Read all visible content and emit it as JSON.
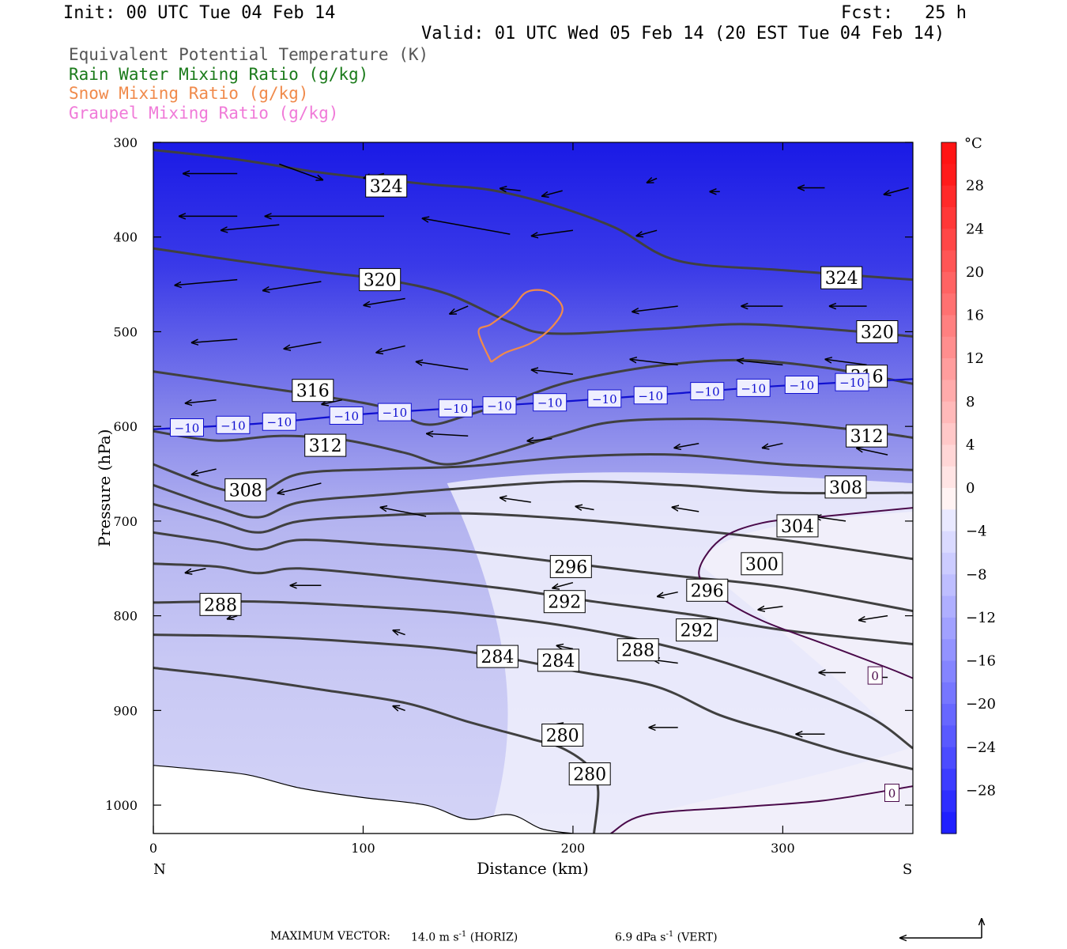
{
  "header": {
    "init": "Init: 00 UTC Tue 04 Feb 14",
    "fcst": "Fcst:   25 h",
    "valid": "Valid: 01 UTC Wed 05 Feb 14 (20 EST Tue 04 Feb 14)"
  },
  "legend": [
    {
      "label": "Equivalent Potential Temperature (K)",
      "color": "#555555"
    },
    {
      "label": "Rain Water Mixing Ratio (g/kg)",
      "color": "#1a7a1a"
    },
    {
      "label": "Snow Mixing Ratio (g/kg)",
      "color": "#f08a4b"
    },
    {
      "label": "Graupel Mixing Ratio (g/kg)",
      "color": "#f07ad8"
    }
  ],
  "footer": {
    "label": "MAXIMUM VECTOR:",
    "horiz_value": "14.0 m s",
    "horiz_exp": "-1",
    "horiz_unit": "(HORIZ)",
    "vert_value": "6.9 dPa s",
    "vert_exp": "-1",
    "vert_unit": "(VERT)"
  },
  "chart_data": {
    "type": "cross-section",
    "xlabel": "Distance (km)",
    "ylabel": "Pressure (hPa)",
    "xlim": [
      0,
      362
    ],
    "ylim": [
      1030,
      300
    ],
    "xticks": [
      0,
      100,
      200,
      300
    ],
    "yticks": [
      300,
      400,
      500,
      600,
      700,
      800,
      900,
      1000
    ],
    "x_end_labels": {
      "left": "N",
      "right": "S"
    },
    "colorbar": {
      "unit": "°C",
      "ticks": [
        28,
        24,
        20,
        16,
        12,
        8,
        4,
        0,
        -4,
        -8,
        -12,
        -16,
        -20,
        -24,
        -28
      ],
      "range": [
        -32,
        32
      ]
    },
    "theta_e_contours": [
      {
        "value": 324,
        "points": [
          [
            0,
            308
          ],
          [
            40,
            318
          ],
          [
            80,
            332
          ],
          [
            130,
            344
          ],
          [
            160,
            350
          ],
          [
            190,
            366
          ],
          [
            220,
            390
          ],
          [
            250,
            425
          ],
          [
            300,
            435
          ],
          [
            362,
            445
          ]
        ]
      },
      {
        "value": 320,
        "points": [
          [
            0,
            412
          ],
          [
            40,
            425
          ],
          [
            80,
            437
          ],
          [
            110,
            445
          ],
          [
            140,
            460
          ],
          [
            170,
            490
          ],
          [
            190,
            502
          ],
          [
            240,
            497
          ],
          [
            280,
            492
          ],
          [
            320,
            497
          ],
          [
            362,
            505
          ]
        ]
      },
      {
        "value": 316,
        "points": [
          [
            0,
            542
          ],
          [
            40,
            555
          ],
          [
            80,
            568
          ],
          [
            110,
            580
          ],
          [
            130,
            598
          ],
          [
            150,
            588
          ],
          [
            175,
            570
          ],
          [
            200,
            552
          ],
          [
            240,
            536
          ],
          [
            280,
            530
          ],
          [
            320,
            538
          ],
          [
            362,
            555
          ]
        ]
      },
      {
        "value": 312,
        "points": [
          [
            0,
            605
          ],
          [
            30,
            615
          ],
          [
            60,
            610
          ],
          [
            90,
            614
          ],
          [
            120,
            628
          ],
          [
            140,
            640
          ],
          [
            165,
            628
          ],
          [
            195,
            608
          ],
          [
            220,
            595
          ],
          [
            260,
            592
          ],
          [
            300,
            596
          ],
          [
            340,
            605
          ],
          [
            362,
            612
          ]
        ]
      },
      {
        "value": 308,
        "points": [
          [
            0,
            640
          ],
          [
            30,
            665
          ],
          [
            50,
            670
          ],
          [
            70,
            650
          ],
          [
            110,
            645
          ],
          [
            150,
            642
          ],
          [
            200,
            632
          ],
          [
            250,
            630
          ],
          [
            300,
            640
          ],
          [
            362,
            646
          ]
        ]
      },
      {
        "value": 304,
        "points": [
          [
            0,
            662
          ],
          [
            30,
            685
          ],
          [
            50,
            696
          ],
          [
            70,
            680
          ],
          [
            110,
            672
          ],
          [
            150,
            665
          ],
          [
            200,
            658
          ],
          [
            250,
            662
          ],
          [
            300,
            670
          ],
          [
            362,
            670
          ]
        ]
      },
      {
        "value": 300,
        "points": [
          [
            0,
            682
          ],
          [
            30,
            700
          ],
          [
            50,
            712
          ],
          [
            70,
            700
          ],
          [
            110,
            694
          ],
          [
            150,
            692
          ],
          [
            200,
            698
          ],
          [
            250,
            708
          ],
          [
            300,
            720
          ],
          [
            362,
            740
          ]
        ]
      },
      {
        "value": 296,
        "points": [
          [
            0,
            712
          ],
          [
            30,
            722
          ],
          [
            50,
            730
          ],
          [
            70,
            720
          ],
          [
            110,
            725
          ],
          [
            150,
            732
          ],
          [
            200,
            745
          ],
          [
            250,
            758
          ],
          [
            300,
            770
          ],
          [
            362,
            795
          ]
        ]
      },
      {
        "value": 292,
        "points": [
          [
            0,
            745
          ],
          [
            30,
            748
          ],
          [
            50,
            755
          ],
          [
            70,
            750
          ],
          [
            120,
            760
          ],
          [
            170,
            772
          ],
          [
            210,
            785
          ],
          [
            260,
            800
          ],
          [
            300,
            815
          ],
          [
            362,
            830
          ]
        ]
      },
      {
        "value": 288,
        "points": [
          [
            0,
            786
          ],
          [
            50,
            785
          ],
          [
            100,
            790
          ],
          [
            150,
            798
          ],
          [
            200,
            812
          ],
          [
            250,
            835
          ],
          [
            300,
            870
          ],
          [
            340,
            905
          ],
          [
            362,
            940
          ]
        ]
      },
      {
        "value": 284,
        "points": [
          [
            0,
            820
          ],
          [
            50,
            822
          ],
          [
            100,
            828
          ],
          [
            150,
            838
          ],
          [
            200,
            858
          ],
          [
            240,
            875
          ],
          [
            270,
            905
          ],
          [
            300,
            925
          ],
          [
            330,
            945
          ],
          [
            362,
            962
          ]
        ]
      },
      {
        "value": 280,
        "points": [
          [
            0,
            855
          ],
          [
            40,
            865
          ],
          [
            80,
            878
          ],
          [
            120,
            892
          ],
          [
            150,
            912
          ],
          [
            180,
            930
          ],
          [
            195,
            940
          ],
          [
            208,
            960
          ],
          [
            212,
            985
          ],
          [
            210,
            1030
          ]
        ]
      }
    ],
    "contour_labels": [
      {
        "text": "324",
        "x": 111,
        "p": 346
      },
      {
        "text": "324",
        "x": 328,
        "p": 443
      },
      {
        "text": "320",
        "x": 108,
        "p": 445
      },
      {
        "text": "320",
        "x": 345,
        "p": 500
      },
      {
        "text": "316",
        "x": 76,
        "p": 562
      },
      {
        "text": "316",
        "x": 340,
        "p": 547
      },
      {
        "text": "312",
        "x": 82,
        "p": 620
      },
      {
        "text": "312",
        "x": 340,
        "p": 610
      },
      {
        "text": "308",
        "x": 44,
        "p": 667
      },
      {
        "text": "308",
        "x": 330,
        "p": 664
      },
      {
        "text": "304",
        "x": 307,
        "p": 705
      },
      {
        "text": "300",
        "x": 290,
        "p": 745
      },
      {
        "text": "296",
        "x": 199,
        "p": 748
      },
      {
        "text": "296",
        "x": 264,
        "p": 773
      },
      {
        "text": "292",
        "x": 196,
        "p": 785
      },
      {
        "text": "292",
        "x": 259,
        "p": 815
      },
      {
        "text": "288",
        "x": 32,
        "p": 788
      },
      {
        "text": "288",
        "x": 231,
        "p": 836
      },
      {
        "text": "284",
        "x": 164,
        "p": 843
      },
      {
        "text": "284",
        "x": 193,
        "p": 847
      },
      {
        "text": "280",
        "x": 195,
        "p": 926
      },
      {
        "text": "280",
        "x": 208,
        "p": 967
      }
    ],
    "isotherm_minus10": {
      "value": -10,
      "points": [
        [
          0,
          603
        ],
        [
          50,
          597
        ],
        [
          100,
          587
        ],
        [
          150,
          580
        ],
        [
          200,
          573
        ],
        [
          250,
          565
        ],
        [
          300,
          557
        ],
        [
          362,
          550
        ]
      ],
      "label_x": [
        16,
        38,
        60,
        92,
        115,
        144,
        165,
        189,
        215,
        237,
        264,
        286,
        309,
        333
      ]
    },
    "isotherm_0_labels": [
      {
        "text": "0",
        "x": 344,
        "p": 863
      },
      {
        "text": "0",
        "x": 352,
        "p": 987
      }
    ],
    "snow_contour": {
      "points": [
        [
          161,
          532
        ],
        [
          168,
          522
        ],
        [
          180,
          512
        ],
        [
          190,
          495
        ],
        [
          195,
          475
        ],
        [
          188,
          458
        ],
        [
          178,
          458
        ],
        [
          171,
          475
        ],
        [
          161,
          492
        ],
        [
          155,
          500
        ],
        [
          161,
          532
        ]
      ]
    },
    "wind_vectors": [
      [
        40,
        333,
        -26,
        0
      ],
      [
        60,
        323,
        21,
        14
      ],
      [
        110,
        333,
        -10,
        4
      ],
      [
        175,
        351,
        -10,
        -2
      ],
      [
        195,
        351,
        -10,
        5
      ],
      [
        240,
        338,
        -5,
        4
      ],
      [
        270,
        352,
        -5,
        0
      ],
      [
        320,
        348,
        -13,
        0
      ],
      [
        360,
        348,
        -12,
        6
      ],
      [
        40,
        378,
        -28,
        0
      ],
      [
        110,
        378,
        -57,
        0
      ],
      [
        170,
        397,
        -42,
        -14
      ],
      [
        200,
        393,
        -20,
        5
      ],
      [
        240,
        393,
        -10,
        5
      ],
      [
        60,
        387,
        -28,
        5
      ],
      [
        40,
        445,
        -30,
        5
      ],
      [
        80,
        447,
        -28,
        8
      ],
      [
        120,
        465,
        -20,
        6
      ],
      [
        150,
        473,
        -9,
        7
      ],
      [
        250,
        473,
        -22,
        5
      ],
      [
        300,
        473,
        -20,
        0
      ],
      [
        340,
        473,
        -18,
        0
      ],
      [
        40,
        508,
        -22,
        3
      ],
      [
        80,
        511,
        -18,
        6
      ],
      [
        120,
        515,
        -14,
        6
      ],
      [
        150,
        540,
        -25,
        -7
      ],
      [
        200,
        545,
        -20,
        -4
      ],
      [
        250,
        535,
        -23,
        -5
      ],
      [
        300,
        535,
        -22,
        -4
      ],
      [
        340,
        535,
        -20,
        -5
      ],
      [
        30,
        572,
        -15,
        3
      ],
      [
        90,
        572,
        -10,
        4
      ],
      [
        150,
        610,
        -20,
        -2
      ],
      [
        190,
        613,
        -12,
        2
      ],
      [
        260,
        618,
        -12,
        4
      ],
      [
        300,
        618,
        -10,
        4
      ],
      [
        350,
        630,
        -15,
        -6
      ],
      [
        30,
        645,
        -12,
        5
      ],
      [
        80,
        660,
        -21,
        9
      ],
      [
        130,
        695,
        -22,
        -8
      ],
      [
        180,
        680,
        -15,
        -4
      ],
      [
        210,
        688,
        -9,
        -3
      ],
      [
        260,
        690,
        -13,
        -4
      ],
      [
        330,
        700,
        -15,
        -4
      ],
      [
        25,
        750,
        -10,
        4
      ],
      [
        80,
        768,
        -15,
        0
      ],
      [
        200,
        765,
        -10,
        5
      ],
      [
        250,
        775,
        -10,
        4
      ],
      [
        300,
        790,
        -12,
        3
      ],
      [
        350,
        800,
        -14,
        4
      ],
      [
        40,
        800,
        -5,
        3
      ],
      [
        120,
        820,
        -6,
        -4
      ],
      [
        200,
        835,
        -8,
        -3
      ],
      [
        250,
        850,
        -12,
        -3
      ],
      [
        330,
        860,
        -13,
        0
      ],
      [
        350,
        865,
        -6,
        0
      ],
      [
        120,
        900,
        -6,
        -4
      ],
      [
        200,
        918,
        -8,
        -3
      ],
      [
        250,
        918,
        -14,
        0
      ],
      [
        320,
        925,
        -14,
        0
      ]
    ],
    "vector_legend": {
      "horiz": "14.0 m s-1",
      "vert": "6.9 dPa s-1"
    }
  }
}
